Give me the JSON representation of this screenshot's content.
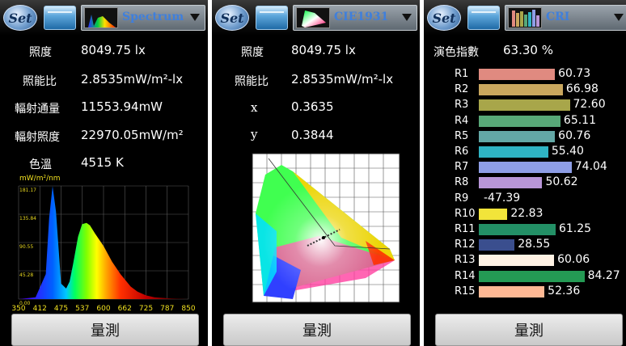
{
  "toolbar": {
    "set_label": "Set"
  },
  "panels": [
    {
      "mode_label": "Spectrum",
      "rows": [
        {
          "label": "照度",
          "value": "8049.75 lx"
        },
        {
          "label": "照能比",
          "value": "2.8535mW/m²-lx"
        },
        {
          "label": "輻射通量",
          "value": "11553.94mW"
        },
        {
          "label": "輻射照度",
          "value": "22970.05mW/m²"
        },
        {
          "label": "色溫",
          "value": "4515 K"
        }
      ],
      "chart": {
        "unit": "mW/m²/nm",
        "y_ticks": [
          "181.17",
          "135.84",
          "90.55",
          "45.28",
          "0.00"
        ],
        "x_ticks": [
          "350",
          "412",
          "475",
          "537",
          "600",
          "662",
          "725",
          "787",
          "850"
        ]
      },
      "measure_label": "量測"
    },
    {
      "mode_label": "CIE1931",
      "rows": [
        {
          "label": "照度",
          "value": "8049.75 lx"
        },
        {
          "label": "照能比",
          "value": "2.8535mW/m²-lx"
        },
        {
          "label": "x",
          "value": "0.3635"
        },
        {
          "label": "y",
          "value": "0.3844"
        }
      ],
      "measure_label": "量測"
    },
    {
      "mode_label": "CRI",
      "cri_title": "演色指數",
      "cri_value": "63.30 %",
      "measure_label": "量測"
    }
  ],
  "chart_data": [
    {
      "type": "area",
      "x_unit": "nm",
      "y_unit": "mW/m²/nm",
      "xlim": [
        350,
        850
      ],
      "ylim": [
        0,
        181.17
      ],
      "x": [
        350,
        400,
        430,
        440,
        450,
        460,
        475,
        490,
        500,
        510,
        525,
        537,
        550,
        560,
        575,
        600,
        625,
        650,
        680,
        700,
        725,
        750,
        800,
        850
      ],
      "values": [
        0,
        3,
        40,
        130,
        181,
        140,
        25,
        17,
        28,
        55,
        100,
        120,
        122,
        118,
        105,
        85,
        60,
        40,
        20,
        12,
        6,
        3,
        1,
        0
      ]
    },
    {
      "type": "bar",
      "categories": [
        "R1",
        "R2",
        "R3",
        "R4",
        "R5",
        "R6",
        "R7",
        "R8",
        "R9",
        "R10",
        "R11",
        "R12",
        "R13",
        "R14",
        "R15"
      ],
      "values": [
        60.73,
        66.98,
        72.6,
        65.11,
        60.76,
        55.4,
        74.04,
        50.62,
        -47.39,
        22.83,
        61.25,
        28.55,
        60.06,
        84.27,
        52.36
      ],
      "labels": [
        "60.73",
        "66.98",
        "72.60",
        "65.11",
        "60.76",
        "55.40",
        "74.04",
        "50.62",
        "-47.39",
        "22.83",
        "61.25",
        "28.55",
        "60.06",
        "84.27",
        "52.36"
      ],
      "colors": [
        "#e08a80",
        "#c9a75e",
        "#a8a64a",
        "#58a878",
        "#63a8a6",
        "#2fb4c4",
        "#8e9ee6",
        "#b896d8",
        "#e0302a",
        "#f2e43a",
        "#239066",
        "#3a4e8e",
        "#fff2e4",
        "#249a54",
        "#ffb894"
      ]
    }
  ]
}
